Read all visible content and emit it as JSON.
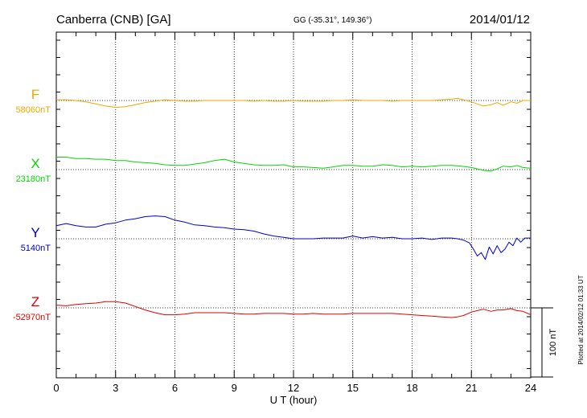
{
  "header": {
    "station": "Canberra (CNB)  [GA]",
    "coords": "GG (-35.31°, 149.36°)",
    "date": "2014/01/12"
  },
  "side_note": "Plotted at 2014/02/12 01:33 UT",
  "scale_label": "100 nT",
  "chart_data": {
    "type": "line",
    "xlabel": "U T (hour)",
    "xlim": [
      0,
      24
    ],
    "x_ticks": [
      "0",
      "3",
      "6",
      "9",
      "12",
      "15",
      "18",
      "21",
      "24"
    ],
    "y_unit_per_scale_bar": 100,
    "grid": true,
    "series": [
      {
        "name": "F",
        "baseline_label": "58060nT",
        "baseline": 58060,
        "color": "#f0a800",
        "x": [
          0,
          0.5,
          1,
          1.5,
          2,
          2.5,
          3,
          3.5,
          4,
          4.5,
          5,
          5.5,
          6,
          6.5,
          7,
          7.5,
          8,
          8.5,
          9,
          9.5,
          10,
          10.5,
          11,
          11.5,
          12,
          12.5,
          13,
          13.5,
          14,
          14.5,
          15,
          15.5,
          16,
          16.5,
          17,
          17.5,
          18,
          18.5,
          19,
          19.5,
          20,
          20.3,
          20.6,
          21,
          21.3,
          21.6,
          22,
          22.3,
          22.6,
          23,
          23.3,
          23.6,
          24
        ],
        "values": [
          58061,
          58061,
          58060,
          58058,
          58055,
          58052,
          58050,
          58051,
          58054,
          58057,
          58059,
          58061,
          58060,
          58059,
          58059,
          58060,
          58060,
          58060,
          58060,
          58060,
          58059,
          58060,
          58059,
          58059,
          58060,
          58059,
          58059,
          58059,
          58060,
          58060,
          58061,
          58060,
          58060,
          58060,
          58059,
          58060,
          58060,
          58060,
          58060,
          58061,
          58062,
          58063,
          58061,
          58058,
          58055,
          58052,
          58054,
          58057,
          58053,
          58058,
          58056,
          58060,
          58060
        ]
      },
      {
        "name": "X",
        "baseline_label": "23180nT",
        "baseline": 23180,
        "color": "#00d800",
        "x": [
          0,
          0.5,
          1,
          1.5,
          2,
          2.5,
          3,
          3.5,
          4,
          4.5,
          5,
          5.5,
          6,
          6.5,
          7,
          7.5,
          8,
          8.5,
          9,
          9.5,
          10,
          10.5,
          11,
          11.5,
          12,
          12.5,
          13,
          13.5,
          14,
          14.5,
          15,
          15.5,
          16,
          16.5,
          17,
          17.5,
          18,
          18.5,
          19,
          19.5,
          20,
          20.5,
          21,
          21.3,
          21.6,
          22,
          22.3,
          22.6,
          23,
          23.3,
          23.6,
          24
        ],
        "values": [
          23198,
          23198,
          23196,
          23196,
          23195,
          23195,
          23193,
          23193,
          23191,
          23190,
          23189,
          23187,
          23186,
          23186,
          23188,
          23190,
          23193,
          23195,
          23191,
          23189,
          23187,
          23186,
          23186,
          23187,
          23184,
          23184,
          23183,
          23182,
          23184,
          23186,
          23186,
          23185,
          23185,
          23187,
          23186,
          23184,
          23185,
          23184,
          23185,
          23186,
          23186,
          23185,
          23183,
          23181,
          23179,
          23178,
          23181,
          23185,
          23184,
          23186,
          23183,
          23182
        ]
      },
      {
        "name": "Y",
        "baseline_label": "5140nT",
        "baseline": 5140,
        "color": "#0000d0",
        "x": [
          0,
          0.5,
          1,
          1.5,
          2,
          2.5,
          3,
          3.5,
          4,
          4.5,
          5,
          5.5,
          6,
          6.5,
          7,
          7.5,
          8,
          8.5,
          9,
          9.5,
          10,
          10.5,
          11,
          11.5,
          12,
          12.5,
          13,
          13.5,
          14,
          14.5,
          15,
          15.5,
          16,
          16.5,
          17,
          17.5,
          18,
          18.5,
          19,
          19.5,
          20,
          20.3,
          20.6,
          20.9,
          21.1,
          21.3,
          21.5,
          21.7,
          21.9,
          22.1,
          22.3,
          22.5,
          22.7,
          22.9,
          23.1,
          23.3,
          23.5,
          23.7,
          24
        ],
        "values": [
          5159,
          5162,
          5159,
          5157,
          5157,
          5161,
          5163,
          5167,
          5169,
          5172,
          5173,
          5172,
          5167,
          5164,
          5160,
          5159,
          5157,
          5156,
          5154,
          5153,
          5151,
          5147,
          5144,
          5142,
          5140,
          5140,
          5140,
          5141,
          5141,
          5141,
          5144,
          5141,
          5143,
          5141,
          5142,
          5140,
          5140,
          5141,
          5139,
          5141,
          5141,
          5140,
          5138,
          5134,
          5125,
          5115,
          5120,
          5110,
          5128,
          5118,
          5130,
          5120,
          5125,
          5135,
          5130,
          5141,
          5135,
          5141,
          5141
        ]
      },
      {
        "name": "Z",
        "baseline_label": "-52970nT",
        "baseline": -52970,
        "color": "#e00000",
        "x": [
          0,
          0.5,
          1,
          1.5,
          2,
          2.5,
          3,
          3.5,
          4,
          4.5,
          5,
          5.5,
          6,
          6.5,
          7,
          7.5,
          8,
          8.5,
          9,
          9.5,
          10,
          10.5,
          11,
          11.5,
          12,
          12.5,
          13,
          13.5,
          14,
          14.5,
          15,
          15.5,
          16,
          16.5,
          17,
          17.5,
          18,
          18.5,
          19,
          19.5,
          20,
          20.3,
          20.6,
          21,
          21.3,
          21.6,
          22,
          22.3,
          22.6,
          23,
          23.3,
          23.6,
          24
        ],
        "values": [
          -52966,
          -52967,
          -52965,
          -52964,
          -52963,
          -52961,
          -52961,
          -52963,
          -52968,
          -52973,
          -52977,
          -52980,
          -52980,
          -52979,
          -52977,
          -52977,
          -52977,
          -52977,
          -52978,
          -52979,
          -52979,
          -52978,
          -52978,
          -52978,
          -52979,
          -52979,
          -52978,
          -52979,
          -52979,
          -52979,
          -52978,
          -52978,
          -52978,
          -52978,
          -52978,
          -52979,
          -52980,
          -52981,
          -52982,
          -52983,
          -52984,
          -52983,
          -52981,
          -52976,
          -52974,
          -52972,
          -52975,
          -52973,
          -52973,
          -52971,
          -52974,
          -52975,
          -52980
        ]
      }
    ]
  }
}
